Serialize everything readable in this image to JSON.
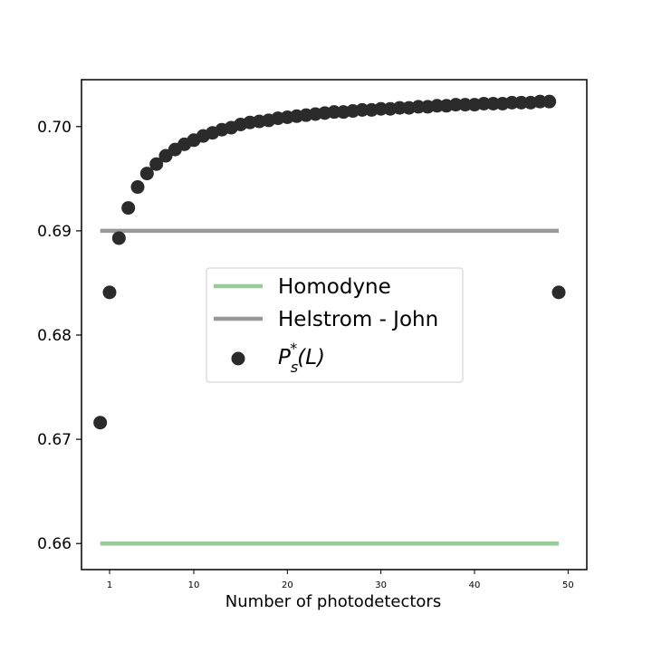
{
  "chart_data": {
    "type": "scatter",
    "xlabel": "Number of photodetectors",
    "xlim": [
      -2,
      52
    ],
    "ylim": [
      0.6575,
      0.7045
    ],
    "x_ticks": [
      1,
      10,
      20,
      30,
      40,
      50
    ],
    "y_ticks": [
      0.66,
      0.67,
      0.68,
      0.69,
      0.7
    ],
    "y_tick_labels": [
      "0.66",
      "0.67",
      "0.68",
      "0.69",
      "0.70"
    ],
    "legend_position": "center-right",
    "lines": [
      {
        "name": "Homodyne",
        "y": 0.66,
        "x_range": [
          0,
          49
        ],
        "color": "#98cc98"
      },
      {
        "name": "Helstrom - John",
        "y": 0.69,
        "x_range": [
          0,
          49
        ],
        "color": "#999999"
      }
    ],
    "series": [
      {
        "name": "P_s^*(L)",
        "color": "#2b2b2b",
        "x": [
          0,
          1,
          2,
          3,
          4,
          5,
          6,
          7,
          8,
          9,
          10,
          11,
          12,
          13,
          14,
          15,
          16,
          17,
          18,
          19,
          20,
          21,
          22,
          23,
          24,
          25,
          26,
          27,
          28,
          29,
          30,
          31,
          32,
          33,
          34,
          35,
          36,
          37,
          38,
          39,
          40,
          41,
          42,
          43,
          44,
          45,
          46,
          47,
          48,
          49
        ],
        "y": [
          0.6716,
          0.6841,
          0.6893,
          0.6922,
          0.6942,
          0.6955,
          0.6964,
          0.6972,
          0.6978,
          0.6983,
          0.6987,
          0.6991,
          0.6994,
          0.6997,
          0.6999,
          0.7002,
          0.7004,
          0.7005,
          0.7006,
          0.7008,
          0.7009,
          0.701,
          0.7011,
          0.7012,
          0.7013,
          0.7014,
          0.7014,
          0.7015,
          0.7016,
          0.7016,
          0.7017,
          0.7017,
          0.7018,
          0.7018,
          0.7019,
          0.7019,
          0.702,
          0.702,
          0.7021,
          0.7021,
          0.7021,
          0.7022,
          0.7022,
          0.7022,
          0.7023,
          0.7023,
          0.7023,
          0.7024,
          0.7024,
          0.6841
        ]
      }
    ]
  },
  "legend": {
    "items": [
      {
        "label": "Homodyne"
      },
      {
        "label": "Helstrom - John"
      },
      {
        "label_main": "P",
        "label_sub": "s",
        "label_sup": "*",
        "label_tail": "(L)"
      }
    ]
  }
}
